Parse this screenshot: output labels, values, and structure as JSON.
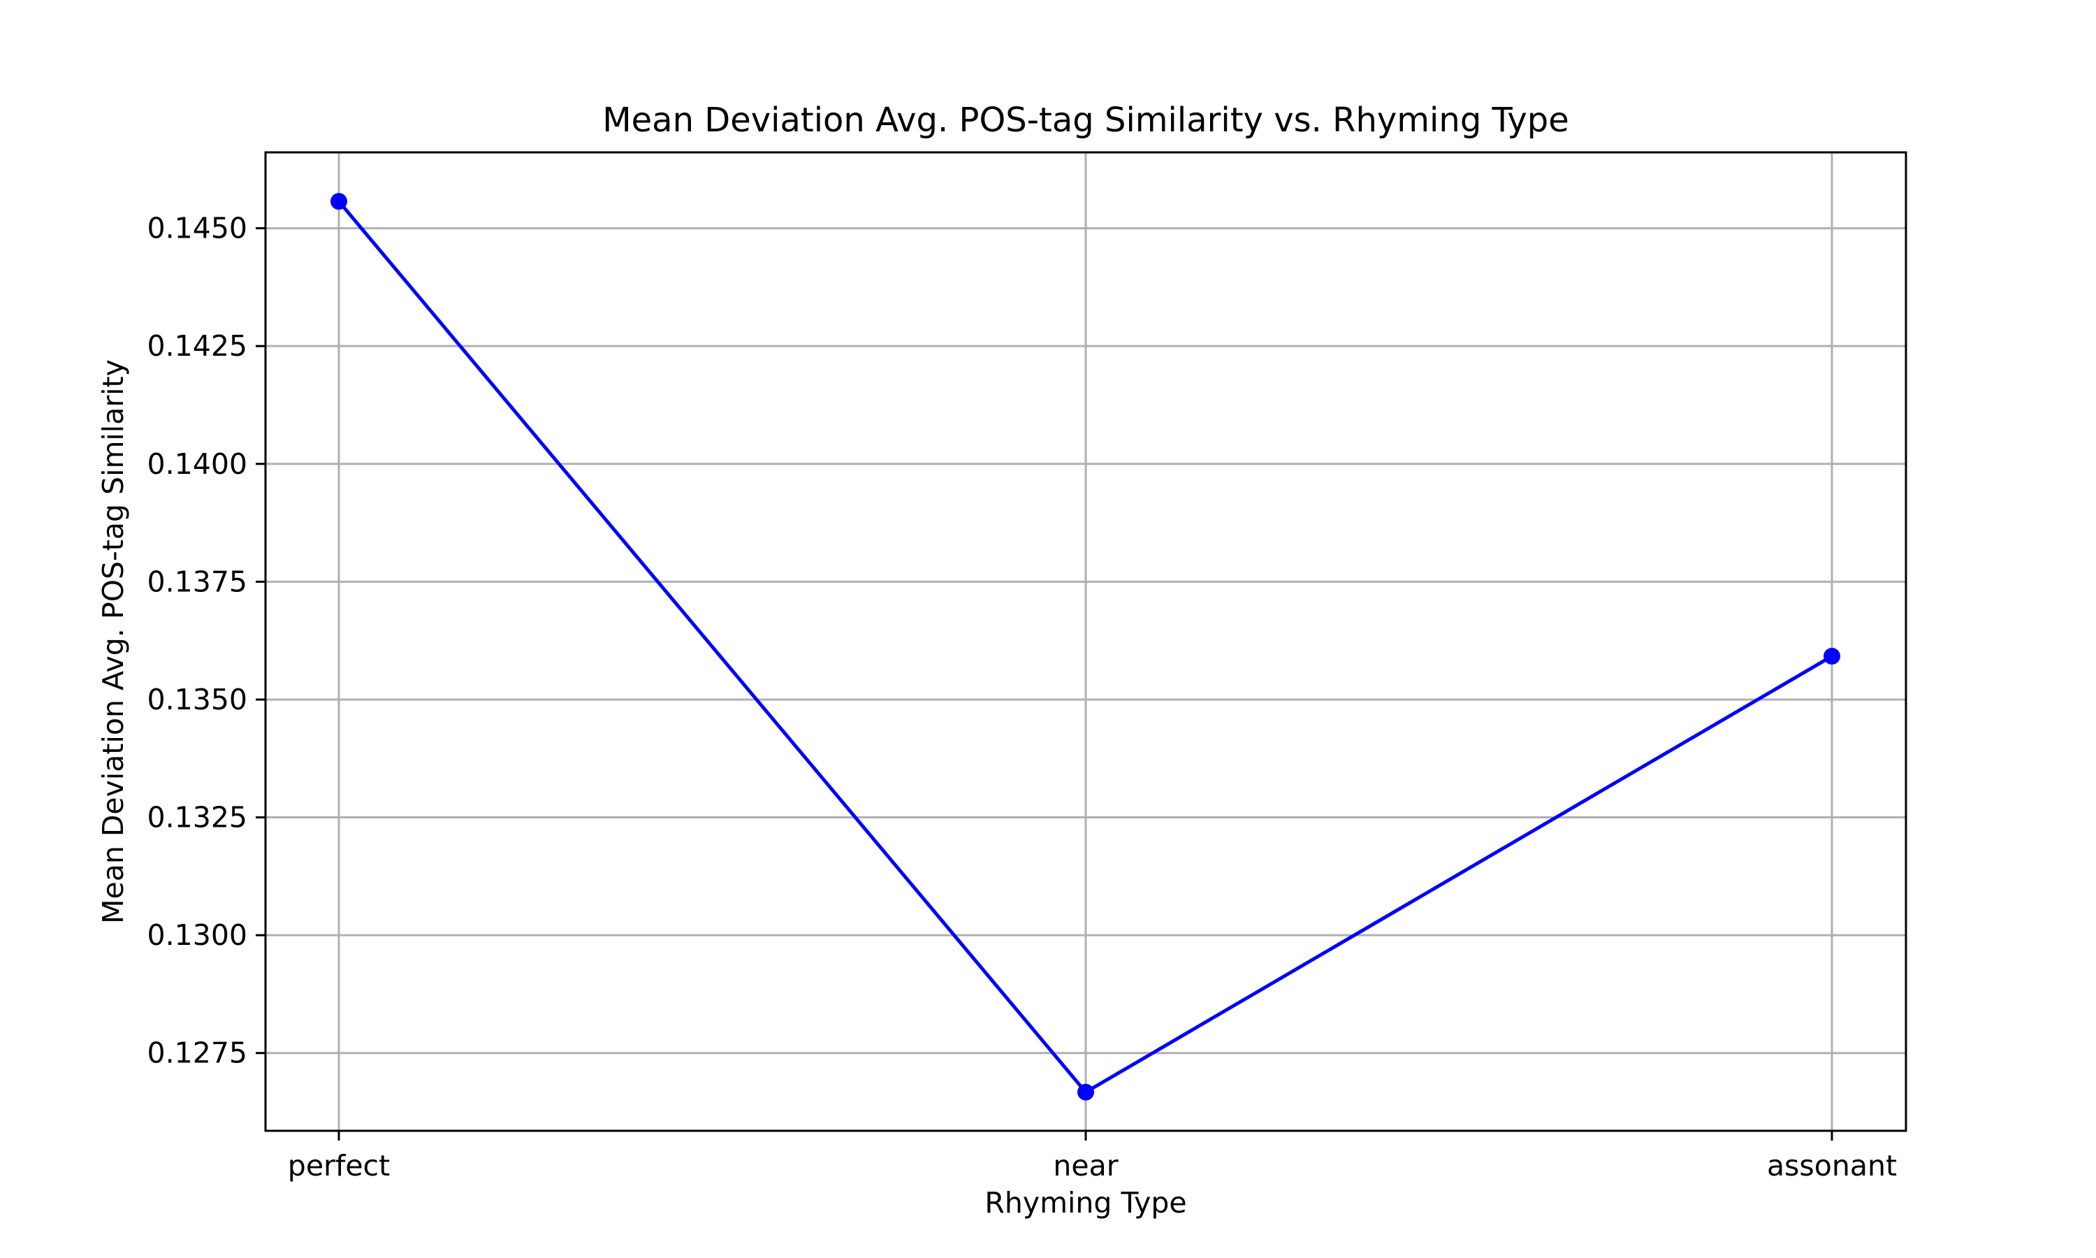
{
  "chart_data": {
    "type": "line",
    "title": "Mean Deviation Avg. POS-tag Similarity vs. Rhyming Type",
    "xlabel": "Rhyming Type",
    "ylabel": "Mean Deviation Avg. POS-tag Similarity",
    "categories": [
      "perfect",
      "near",
      "assonant"
    ],
    "series": [
      {
        "values": [
          0.14557,
          0.12667,
          0.13592
        ],
        "color": "#0000ff",
        "marker": "circle"
      }
    ],
    "ylim": [
      0.12585,
      0.14661
    ],
    "yticks": [
      0.1275,
      0.13,
      0.1325,
      0.135,
      0.1375,
      0.14,
      0.1425,
      0.145
    ],
    "ytick_labels": [
      "0.1275",
      "0.1300",
      "0.1325",
      "0.1350",
      "0.1375",
      "0.1400",
      "0.1425",
      "0.1450"
    ],
    "grid": true,
    "legend": "none"
  }
}
